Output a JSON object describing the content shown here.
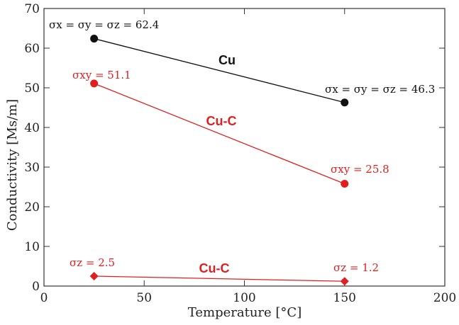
{
  "chart_data": {
    "type": "line",
    "title": "",
    "xlabel": "Temperature  [°C]",
    "ylabel": "Conductivity [Ms/m]",
    "xlim": [
      0,
      200
    ],
    "ylim": [
      0,
      70
    ],
    "xticks": [
      0,
      50,
      100,
      150,
      200
    ],
    "yticks": [
      0,
      10,
      20,
      30,
      40,
      50,
      60,
      70
    ],
    "grid": false,
    "series": [
      {
        "name": "Cu",
        "color": "#111111",
        "marker": "circle",
        "x": [
          25,
          150
        ],
        "y": [
          62.4,
          46.3
        ],
        "annotations": [
          "σx = σy = σz = 62.4",
          "σx = σy = σz = 46.3"
        ]
      },
      {
        "name": "Cu-C",
        "color": "#e02020",
        "marker": "circle",
        "x": [
          25,
          150
        ],
        "y": [
          51.1,
          25.8
        ],
        "annotations": [
          "σxy = 51.1",
          "σxy = 25.8"
        ]
      },
      {
        "name": "Cu-C",
        "color": "#e02020",
        "marker": "diamond",
        "x": [
          25,
          150
        ],
        "y": [
          2.5,
          1.2
        ],
        "annotations": [
          "σz = 2.5",
          "σz = 1.2"
        ]
      }
    ]
  }
}
